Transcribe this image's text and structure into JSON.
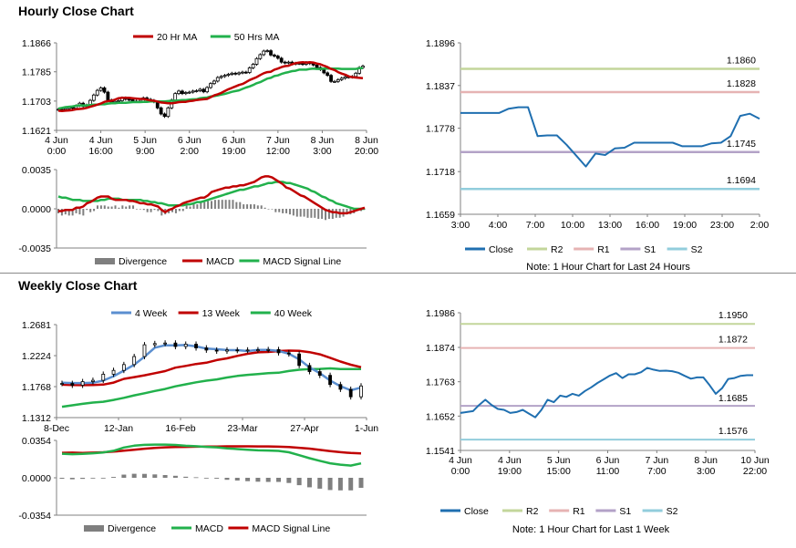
{
  "colors": {
    "ma20": "#c00000",
    "ma50": "#22b14c",
    "wk4": "#5b8fd0",
    "wk13": "#c00000",
    "wk40": "#22b14c",
    "macd": "#c00000",
    "signal": "#22b14c",
    "div": "#7f7f7f",
    "close": "#1f6fb0",
    "r2": "#c3d69b",
    "r1": "#e6b3b3",
    "s1": "#b3a2c7",
    "s2": "#92cddc"
  },
  "hourly": {
    "title": "Hourly Close Chart",
    "price": {
      "legend": [
        "20 Hr MA",
        "50 Hrs MA"
      ],
      "yticks": [
        "1.1866",
        "1.1785",
        "1.1703",
        "1.1621"
      ],
      "xticks": [
        [
          "4 Jun",
          "0:00"
        ],
        [
          "4 Jun",
          "16:00"
        ],
        [
          "5 Jun",
          "9:00"
        ],
        [
          "6 Jun",
          "2:00"
        ],
        [
          "6 Jun",
          "19:00"
        ],
        [
          "7 Jun",
          "12:00"
        ],
        [
          "8 Jun",
          "3:00"
        ],
        [
          "8 Jun",
          "20:00"
        ]
      ],
      "ylim": [
        1.1621,
        1.1866
      ],
      "candles": [
        1.168,
        1.1679,
        1.1682,
        1.1686,
        1.1683,
        1.169,
        1.1697,
        1.1688,
        1.1692,
        1.1705,
        1.172,
        1.1733,
        1.174,
        1.1728,
        1.1706,
        1.1698,
        1.1702,
        1.1704,
        1.1712,
        1.1708,
        1.1707,
        1.1703,
        1.1703,
        1.1702,
        1.1712,
        1.1708,
        1.1705,
        1.1701,
        1.1684,
        1.1667,
        1.166,
        1.1684,
        1.1706,
        1.1724,
        1.1731,
        1.1724,
        1.1727,
        1.1728,
        1.1731,
        1.1732,
        1.1736,
        1.1729,
        1.1741,
        1.1752,
        1.1759,
        1.1769,
        1.1772,
        1.1775,
        1.1778,
        1.1781,
        1.1779,
        1.1782,
        1.1784,
        1.1783,
        1.1796,
        1.1806,
        1.1822,
        1.1833,
        1.1843,
        1.1844,
        1.1832,
        1.1829,
        1.1823,
        1.1812,
        1.181,
        1.1812,
        1.1807,
        1.1809,
        1.1808,
        1.1806,
        1.1811,
        1.1808,
        1.1804,
        1.1797,
        1.1791,
        1.1782,
        1.1775,
        1.1758,
        1.1758,
        1.1763,
        1.1767,
        1.1771,
        1.177,
        1.1772,
        1.1781,
        1.1797,
        1.1801
      ],
      "ma20": [
        1.1676,
        1.1675,
        1.1676,
        1.1677,
        1.1678,
        1.168,
        1.1681,
        1.1682,
        1.1684,
        1.1687,
        1.169,
        1.1693,
        1.1696,
        1.1701,
        1.1703,
        1.1704,
        1.1707,
        1.1711,
        1.1712,
        1.1712,
        1.1712,
        1.1711,
        1.171,
        1.1709,
        1.1709,
        1.1707,
        1.1705,
        1.1704,
        1.1702,
        1.1699,
        1.1698,
        1.1697,
        1.1697,
        1.1698,
        1.17,
        1.1701,
        1.1701,
        1.1703,
        1.1704,
        1.1706,
        1.1707,
        1.1708,
        1.1709,
        1.1714,
        1.1719,
        1.1722,
        1.1726,
        1.1731,
        1.1736,
        1.174,
        1.1744,
        1.1748,
        1.1751,
        1.1756,
        1.1762,
        1.1766,
        1.177,
        1.1776,
        1.1781,
        1.1784,
        1.1785,
        1.1791,
        1.1794,
        1.1798,
        1.1801,
        1.1802,
        1.1806,
        1.1809,
        1.1811,
        1.1812,
        1.1811,
        1.1812,
        1.1811,
        1.1808,
        1.1806,
        1.1802,
        1.1798,
        1.1793,
        1.179,
        1.1784,
        1.178,
        1.1777,
        1.1772,
        1.177,
        1.1769,
        1.1768,
        1.1767
      ],
      "ma50": [
        1.1682,
        1.1684,
        1.1686,
        1.1687,
        1.1688,
        1.169,
        1.1691,
        1.1691,
        1.1691,
        1.1692,
        1.1693,
        1.1693,
        1.1694,
        1.1694,
        1.1696,
        1.1697,
        1.1697,
        1.1698,
        1.1698,
        1.1698,
        1.1699,
        1.17,
        1.17,
        1.17,
        1.1701,
        1.1701,
        1.1702,
        1.1702,
        1.1702,
        1.1702,
        1.1702,
        1.1703,
        1.1704,
        1.1704,
        1.1705,
        1.1706,
        1.1706,
        1.1707,
        1.1708,
        1.1708,
        1.1711,
        1.1712,
        1.1713,
        1.1716,
        1.1717,
        1.1719,
        1.1721,
        1.1723,
        1.1726,
        1.1729,
        1.1731,
        1.1733,
        1.1737,
        1.1741,
        1.1744,
        1.1748,
        1.1753,
        1.1756,
        1.1761,
        1.1766,
        1.1768,
        1.1773,
        1.1775,
        1.1779,
        1.1782,
        1.1784,
        1.1787,
        1.1788,
        1.1791,
        1.1791,
        1.1791,
        1.1793,
        1.1794,
        1.1793,
        1.1793,
        1.1794,
        1.1794,
        1.1794,
        1.1794,
        1.1794,
        1.1793,
        1.1793,
        1.1793,
        1.1793,
        1.1793,
        1.1795,
        1.1795
      ]
    },
    "macd": {
      "legend": [
        "Divergence",
        "MACD",
        "MACD Signal Line"
      ],
      "yticks": [
        "0.0035",
        "0.0000",
        "-0.0035"
      ],
      "ylim": [
        -0.0035,
        0.0035
      ],
      "macd": [
        -0.0002,
        -0.0002,
        -0.0001,
        -0.0001,
        -0.0001,
        0.0001,
        0.0001,
        0.0002,
        0.0005,
        0.0006,
        0.0008,
        0.001,
        0.0011,
        0.0011,
        0.0011,
        0.0009,
        0.0008,
        0.0008,
        0.0008,
        0.0008,
        0.0007,
        0.0007,
        0.0006,
        0.0005,
        0.0005,
        0.0004,
        0.0004,
        0.0003,
        0.0002,
        -0.0001,
        -0.0003,
        -0.0001,
        0.0,
        0.0002,
        0.0003,
        0.0005,
        0.0006,
        0.0007,
        0.0008,
        0.0009,
        0.001,
        0.001,
        0.0012,
        0.0015,
        0.0016,
        0.0017,
        0.0018,
        0.0019,
        0.0019,
        0.002,
        0.002,
        0.0021,
        0.0021,
        0.0022,
        0.0023,
        0.0024,
        0.0026,
        0.0028,
        0.0029,
        0.0029,
        0.0028,
        0.0026,
        0.0024,
        0.0022,
        0.0019,
        0.0018,
        0.0016,
        0.0014,
        0.0012,
        0.0011,
        0.0009,
        0.0007,
        0.0005,
        0.0003,
        0.0001,
        -0.0001,
        -0.0002,
        -0.0003,
        -0.0003,
        -0.0004,
        -0.0004,
        -0.0004,
        -0.0003,
        -0.0002,
        -0.0001,
        0.0,
        0.0001
      ],
      "signal": [
        0.0011,
        0.001,
        0.001,
        0.0009,
        0.0008,
        0.0008,
        0.0008,
        0.0007,
        0.0007,
        0.0007,
        0.0007,
        0.0007,
        0.0008,
        0.0008,
        0.0009,
        0.0009,
        0.0009,
        0.0009,
        0.0008,
        0.0008,
        0.0008,
        0.0008,
        0.0008,
        0.0008,
        0.0007,
        0.0007,
        0.0006,
        0.0006,
        0.0005,
        0.0005,
        0.0004,
        0.0003,
        0.0003,
        0.0003,
        0.0003,
        0.0003,
        0.0004,
        0.0004,
        0.0005,
        0.0006,
        0.0006,
        0.0007,
        0.0008,
        0.0009,
        0.001,
        0.0011,
        0.0012,
        0.0013,
        0.0014,
        0.0015,
        0.0016,
        0.0017,
        0.0017,
        0.0018,
        0.0019,
        0.002,
        0.002,
        0.0021,
        0.0022,
        0.0023,
        0.0023,
        0.0024,
        0.0024,
        0.0024,
        0.0023,
        0.0023,
        0.0022,
        0.0021,
        0.002,
        0.0019,
        0.0018,
        0.0016,
        0.0015,
        0.0013,
        0.0011,
        0.001,
        0.0008,
        0.0007,
        0.0005,
        0.0004,
        0.0003,
        0.0002,
        0.0001,
        0.0,
        0.0,
        0.0,
        0.0
      ],
      "divergence": [
        -0.0004,
        -0.0006,
        -0.0005,
        -0.0006,
        -0.0006,
        -0.0004,
        -0.0005,
        -0.0006,
        -0.0001,
        -0.0003,
        -0.0002,
        0.0003,
        0.0003,
        0.0003,
        0.0002,
        0.0002,
        0.0003,
        0.0001,
        0.0003,
        0.0002,
        0.0003,
        0.0003,
        0.0,
        0.0,
        -0.0001,
        -0.0003,
        -0.0003,
        -0.0001,
        -0.0002,
        -0.0006,
        -0.0005,
        -0.0004,
        -0.0003,
        -0.0004,
        -0.0002,
        -0.0002,
        0.0003,
        0.0002,
        0.0005,
        0.0004,
        0.0006,
        0.0006,
        0.0007,
        0.0007,
        0.0008,
        0.0008,
        0.0008,
        0.0008,
        0.0008,
        0.0008,
        0.0006,
        0.0006,
        0.0004,
        0.0004,
        0.0004,
        0.0004,
        0.0003,
        0.0003,
        0.0001,
        0.0,
        0.0,
        -0.0003,
        -0.0003,
        -0.0004,
        -0.0004,
        -0.0005,
        -0.0006,
        -0.0007,
        -0.0007,
        -0.0007,
        -0.0008,
        -0.0008,
        -0.0008,
        -0.0009,
        -0.0009,
        -0.001,
        -0.0009,
        -0.0009,
        -0.0008,
        -0.0008,
        -0.0007,
        -0.0005,
        -0.0005,
        -0.0004,
        -0.0002,
        -0.0002,
        0.0
      ]
    },
    "levels": {
      "yticks": [
        "1.1896",
        "1.1837",
        "1.1778",
        "1.1718",
        "1.1659"
      ],
      "ylim": [
        1.1659,
        1.1896
      ],
      "xticks": [
        "3:00",
        "4:00",
        "7:00",
        "10:00",
        "13:00",
        "16:00",
        "19:00",
        "23:00",
        "2:00"
      ],
      "close": [
        1.1799,
        1.1799,
        1.1799,
        1.1799,
        1.1799,
        1.1805,
        1.1807,
        1.1807,
        1.1767,
        1.1768,
        1.1768,
        1.1755,
        1.174,
        1.1725,
        1.1743,
        1.1741,
        1.175,
        1.1751,
        1.1758,
        1.1758,
        1.1758,
        1.1758,
        1.1758,
        1.1753,
        1.1753,
        1.1753,
        1.1757,
        1.1758,
        1.1767,
        1.1795,
        1.1798,
        1.1791
      ],
      "R2": 1.186,
      "R1": 1.1828,
      "S1": 1.1745,
      "S2": 1.1694,
      "labels": {
        "R2": "1.1860",
        "R1": "1.1828",
        "S1": "1.1745",
        "S2": "1.1694"
      },
      "legend": [
        "Close",
        "R2",
        "R1",
        "S1",
        "S2"
      ],
      "note": "Note: 1 Hour Chart for Last 24 Hours"
    }
  },
  "weekly": {
    "title": "Weekly Close Chart",
    "price": {
      "legend": [
        "4 Week",
        "13 Week",
        "40 Week"
      ],
      "yticks": [
        "1.2681",
        "1.2224",
        "1.1768",
        "1.1312"
      ],
      "ylim": [
        1.1312,
        1.2681
      ],
      "xticks": [
        "8-Dec",
        "12-Jan",
        "16-Feb",
        "23-Mar",
        "27-Apr",
        "1-Jun"
      ],
      "candles": [
        1.1815,
        1.1788,
        1.1842,
        1.1861,
        1.1951,
        1.2007,
        1.2093,
        1.2211,
        1.2384,
        1.2402,
        1.241,
        1.2358,
        1.2393,
        1.2338,
        1.2306,
        1.2291,
        1.2308,
        1.23,
        1.2308,
        1.2311,
        1.2314,
        1.2266,
        1.2249,
        1.2079,
        1.1989,
        1.1934,
        1.1799,
        1.1729,
        1.1618,
        1.1778
      ],
      "ma4": [
        1.1825,
        1.1821,
        1.1821,
        1.1825,
        1.1857,
        1.1921,
        1.2005,
        1.2091,
        1.2209,
        1.2341,
        1.2376,
        1.2377,
        1.2381,
        1.236,
        1.2328,
        1.2318,
        1.2307,
        1.2305,
        1.2292,
        1.2309,
        1.2308,
        1.2293,
        1.2253,
        1.2169,
        1.2051,
        1.1966,
        1.1858,
        1.1774,
        1.1714,
        1.1753
      ],
      "ma13": [
        1.1796,
        1.1791,
        1.179,
        1.1792,
        1.1798,
        1.1827,
        1.1883,
        1.1908,
        1.1935,
        1.1966,
        1.1996,
        1.2048,
        1.2073,
        1.2101,
        1.212,
        1.2159,
        1.2185,
        1.222,
        1.2251,
        1.2273,
        1.2279,
        1.2292,
        1.2298,
        1.2294,
        1.2276,
        1.2243,
        1.2192,
        1.2138,
        1.209,
        1.2054
      ],
      "ma40": [
        1.1472,
        1.1493,
        1.1515,
        1.1533,
        1.1545,
        1.1572,
        1.1603,
        1.1639,
        1.167,
        1.1704,
        1.1734,
        1.1773,
        1.1802,
        1.1831,
        1.1856,
        1.1874,
        1.1902,
        1.1925,
        1.1941,
        1.1953,
        1.1966,
        1.1973,
        1.1998,
        1.2017,
        1.2026,
        1.2029,
        1.2037,
        1.2026,
        1.2028,
        1.2028
      ]
    },
    "macd": {
      "legend": [
        "Divergence",
        "MACD",
        "MACD Signal Line"
      ],
      "yticks": [
        "0.0354",
        "0.0000",
        "-0.0354"
      ],
      "ylim": [
        -0.0354,
        0.0354
      ],
      "macd": [
        0.0228,
        0.0224,
        0.0226,
        0.0232,
        0.024,
        0.0256,
        0.0287,
        0.0304,
        0.0312,
        0.0314,
        0.0314,
        0.0311,
        0.0303,
        0.0299,
        0.0293,
        0.0288,
        0.0279,
        0.0272,
        0.0266,
        0.026,
        0.0258,
        0.0255,
        0.0242,
        0.0214,
        0.0186,
        0.0161,
        0.0137,
        0.0124,
        0.0116,
        0.0136
      ],
      "signal": [
        0.0237,
        0.0238,
        0.0236,
        0.0238,
        0.0242,
        0.0248,
        0.0257,
        0.0266,
        0.0275,
        0.0282,
        0.0288,
        0.0292,
        0.0293,
        0.0294,
        0.0296,
        0.0296,
        0.0298,
        0.0298,
        0.0298,
        0.0297,
        0.0297,
        0.0294,
        0.0291,
        0.0284,
        0.0276,
        0.0264,
        0.0253,
        0.0243,
        0.0235,
        0.0231
      ],
      "divergence": [
        -0.0009,
        -0.0014,
        -0.001,
        -0.0006,
        -0.0002,
        0.0008,
        0.003,
        0.0038,
        0.0037,
        0.0032,
        0.0026,
        0.0019,
        0.001,
        0.0005,
        -0.0003,
        -0.0008,
        -0.0019,
        -0.0026,
        -0.0032,
        -0.0037,
        -0.0039,
        -0.0039,
        -0.0049,
        -0.007,
        -0.009,
        -0.0103,
        -0.0116,
        -0.0119,
        -0.0119,
        -0.0095
      ]
    },
    "levels": {
      "yticks": [
        "1.1986",
        "1.1874",
        "1.1763",
        "1.1652",
        "1.1541"
      ],
      "ylim": [
        1.1541,
        1.1986
      ],
      "xticks": [
        [
          "4 Jun",
          "0:00"
        ],
        [
          "4 Jun",
          "19:00"
        ],
        [
          "5 Jun",
          "15:00"
        ],
        [
          "6 Jun",
          "11:00"
        ],
        [
          "7 Jun",
          "7:00"
        ],
        [
          "8 Jun",
          "3:00"
        ],
        [
          "10 Jun",
          "22:00"
        ]
      ],
      "close": [
        1.1662,
        1.1665,
        1.1668,
        1.1688,
        1.1705,
        1.1688,
        1.1675,
        1.1672,
        1.1662,
        1.1665,
        1.1672,
        1.166,
        1.1648,
        1.1672,
        1.1705,
        1.1697,
        1.1718,
        1.1714,
        1.1724,
        1.1718,
        1.1733,
        1.1745,
        1.1759,
        1.1771,
        1.1783,
        1.1791,
        1.1775,
        1.1787,
        1.1787,
        1.1794,
        1.1808,
        1.1802,
        1.1798,
        1.1799,
        1.1797,
        1.1792,
        1.1782,
        1.1773,
        1.1777,
        1.1777,
        1.1752,
        1.1724,
        1.1742,
        1.1772,
        1.1775,
        1.1782,
        1.1784,
        1.1784
      ],
      "R2": 1.195,
      "R1": 1.1872,
      "S1": 1.1685,
      "S2": 1.1576,
      "labels": {
        "R2": "1.1950",
        "R1": "1.1872",
        "S1": "1.1685",
        "S2": "1.1576"
      },
      "legend": [
        "Close",
        "R2",
        "R1",
        "S1",
        "S2"
      ],
      "note": "Note: 1 Hour Chart for Last 1 Week"
    }
  }
}
